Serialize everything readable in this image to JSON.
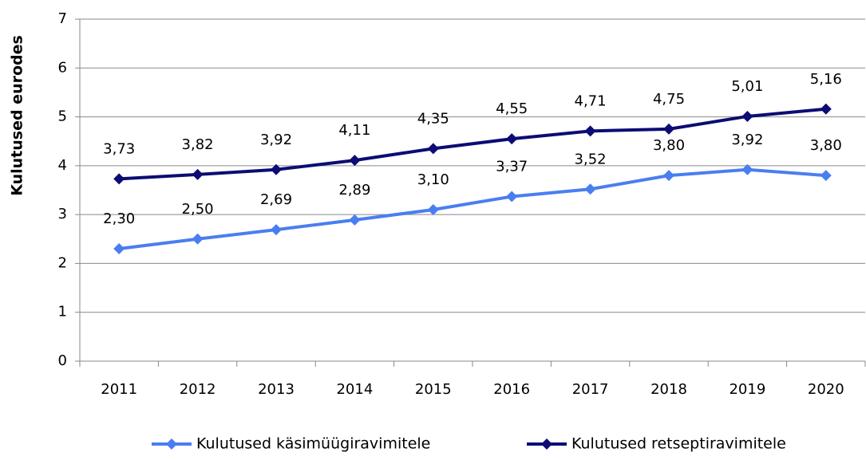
{
  "chart_data": {
    "type": "line",
    "ylabel": "Kulutused eurodes",
    "categories": [
      "2011",
      "2012",
      "2013",
      "2014",
      "2015",
      "2016",
      "2017",
      "2018",
      "2019",
      "2020"
    ],
    "series": [
      {
        "name": "Kulutused käsimüügiravimitele",
        "color": "#4a7ef0",
        "values": [
          2.3,
          2.5,
          2.69,
          2.89,
          3.1,
          3.37,
          3.52,
          3.8,
          3.92,
          3.8
        ],
        "value_labels": [
          "2,30",
          "2,50",
          "2,69",
          "2,89",
          "3,10",
          "3,37",
          "3,52",
          "3,80",
          "3,92",
          "3,80"
        ]
      },
      {
        "name": "Kulutused retseptiravimitele",
        "color": "#0c0c74",
        "values": [
          3.73,
          3.82,
          3.92,
          4.11,
          4.35,
          4.55,
          4.71,
          4.75,
          5.01,
          5.16
        ],
        "value_labels": [
          "3,73",
          "3,82",
          "3,92",
          "4,11",
          "4,35",
          "4,55",
          "4,71",
          "4,75",
          "5,01",
          "5,16"
        ]
      }
    ],
    "ylim": [
      0,
      7
    ],
    "yticks": [
      0,
      1,
      2,
      3,
      4,
      5,
      6,
      7
    ],
    "grid": true,
    "legend": "bottom"
  }
}
